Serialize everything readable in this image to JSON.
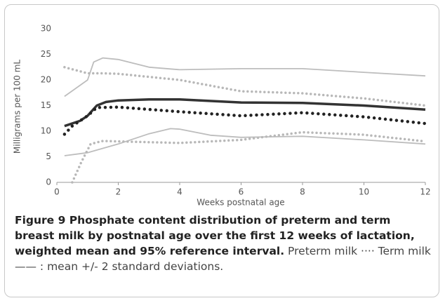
{
  "chart_data": {
    "type": "line",
    "ylabel": "Milligrams per 100 mL",
    "xlabel": "Weeks postnatal age",
    "xlim": [
      0,
      12
    ],
    "xticks": [
      0,
      2,
      4,
      6,
      8,
      10,
      12
    ],
    "ylim": [
      0,
      30
    ],
    "yticks": [
      0,
      5,
      10,
      15,
      20,
      25,
      30
    ],
    "grid": false,
    "series": [
      {
        "color": "#bdbdbd",
        "line_style": "solid",
        "x": [
          0.25,
          1.0,
          1.2,
          1.5,
          2,
          3,
          4,
          6,
          8,
          10,
          12
        ],
        "values": [
          16.8,
          20,
          23.5,
          24.3,
          24,
          22.5,
          22,
          22.2,
          22.2,
          21.5,
          20.8
        ]
      },
      {
        "color": "#333333",
        "line_style": "solid",
        "x": [
          0.25,
          0.75,
          1.0,
          1.3,
          1.6,
          2,
          3,
          4,
          6,
          8,
          10,
          12
        ],
        "values": [
          11,
          12,
          13,
          15,
          15.7,
          16,
          16.2,
          16.2,
          15.6,
          15.5,
          15,
          14.2
        ]
      },
      {
        "color": "#bdbdbd",
        "line_style": "solid",
        "x": [
          0.25,
          1,
          2,
          3,
          3.7,
          4,
          5,
          6,
          8,
          10,
          12
        ],
        "values": [
          5.2,
          5.8,
          7.5,
          9.5,
          10.5,
          10.4,
          9.2,
          8.8,
          9.0,
          8.3,
          7.5
        ]
      },
      {
        "color": "#b8b8b8",
        "line_style": "dotted",
        "x": [
          0.25,
          1,
          1.5,
          2,
          4,
          6,
          8,
          10,
          12
        ],
        "values": [
          22.5,
          21.3,
          21.3,
          21.2,
          20,
          17.8,
          17.4,
          16.4,
          15.0
        ]
      },
      {
        "color": "#222222",
        "line_style": "dotted",
        "x": [
          0.25,
          0.5,
          1,
          1.3,
          2,
          4,
          6,
          8,
          10,
          12
        ],
        "values": [
          9.4,
          11,
          13,
          14.6,
          14.7,
          13.8,
          13,
          13.6,
          12.8,
          11.5
        ]
      },
      {
        "color": "#b8b8b8",
        "line_style": "dotted",
        "x": [
          0.5,
          0.8,
          1.1,
          1.5,
          2,
          4,
          6,
          8,
          10,
          12
        ],
        "values": [
          0,
          4,
          7.5,
          8.1,
          8.0,
          7.7,
          8.3,
          9.8,
          9.3,
          8.0
        ]
      }
    ],
    "caption": {
      "bold": "Figure 9 Phosphate content distribution of preterm and term breast milk by postnatal age over the first 12 weeks of lactation, weighted mean and 95% reference interval.",
      "text": "Preterm milk ···· Term milk —— : mean +/- 2 standard deviations."
    }
  }
}
